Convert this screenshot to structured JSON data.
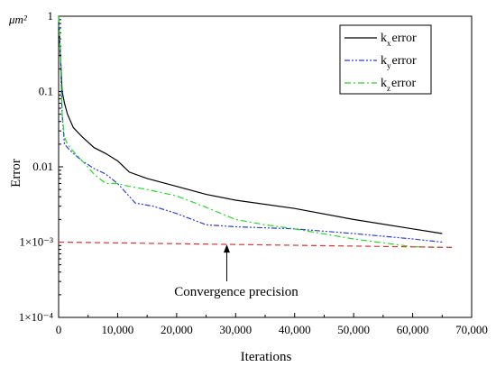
{
  "chart_data": {
    "type": "line",
    "title": "",
    "unit_label": "μm²",
    "xlabel": "Iterations",
    "ylabel": "Error",
    "xlim": [
      0,
      70000
    ],
    "ylim": [
      0.0001,
      1
    ],
    "yscale": "log",
    "x_ticks": [
      0,
      10000,
      20000,
      30000,
      40000,
      50000,
      60000,
      70000
    ],
    "x_tick_labels": [
      "0",
      "10,000",
      "20,000",
      "30,000",
      "40,000",
      "50,000",
      "60,000",
      "70,000"
    ],
    "y_ticks": [
      0.0001,
      0.001,
      0.01,
      0.1,
      1
    ],
    "y_tick_labels": [
      "1×10⁻⁴",
      "1×10⁻³",
      "0.01",
      "0.1",
      "1"
    ],
    "grid": false,
    "legend_position": "top-right",
    "series": [
      {
        "name": "kx error",
        "base": "k",
        "sub": "x",
        "suffix": "error",
        "color": "#000000",
        "dash": "solid",
        "x": [
          0,
          300,
          600,
          1000,
          1500,
          2500,
          4000,
          6000,
          8000,
          10000,
          12000,
          15000,
          20000,
          25000,
          30000,
          40000,
          50000,
          60000,
          65000
        ],
        "y": [
          1,
          0.3,
          0.1,
          0.07,
          0.05,
          0.033,
          0.025,
          0.018,
          0.015,
          0.012,
          0.0085,
          0.007,
          0.0055,
          0.0043,
          0.0036,
          0.0028,
          0.002,
          0.0015,
          0.0013
        ]
      },
      {
        "name": "ky error",
        "base": "k",
        "sub": "y",
        "suffix": "error",
        "color": "#2f3fd6",
        "dash": "dashdotdot",
        "x": [
          0,
          300,
          600,
          1000,
          1500,
          2500,
          4000,
          6000,
          8000,
          10000,
          13000,
          16000,
          20000,
          25000,
          30000,
          40000,
          50000,
          60000,
          65000
        ],
        "y": [
          1,
          0.3,
          0.05,
          0.02,
          0.018,
          0.015,
          0.012,
          0.0095,
          0.008,
          0.006,
          0.0033,
          0.003,
          0.0024,
          0.0017,
          0.0016,
          0.0015,
          0.0013,
          0.0011,
          0.001
        ]
      },
      {
        "name": "kz error",
        "base": "k",
        "sub": "z",
        "suffix": "error",
        "color": "#22dd22",
        "dash": "dashdot",
        "x": [
          0,
          300,
          600,
          1000,
          1500,
          2500,
          4000,
          6000,
          8000,
          10000,
          12000,
          15000,
          20000,
          25000,
          30000,
          35000,
          40000,
          50000,
          60000,
          65000
        ],
        "y": [
          1,
          0.3,
          0.05,
          0.025,
          0.02,
          0.016,
          0.012,
          0.008,
          0.006,
          0.006,
          0.0055,
          0.005,
          0.0041,
          0.0029,
          0.002,
          0.0017,
          0.0015,
          0.0011,
          0.00087,
          0.00085
        ]
      },
      {
        "name": "convergence precision",
        "color": "#e03030",
        "dash": "dashed",
        "x": [
          0,
          67000
        ],
        "y": [
          0.001,
          0.00085
        ]
      }
    ],
    "annotations": [
      {
        "text": "Convergence precision",
        "arrow_to": {
          "x": 28500,
          "y": 0.00093
        }
      }
    ]
  }
}
